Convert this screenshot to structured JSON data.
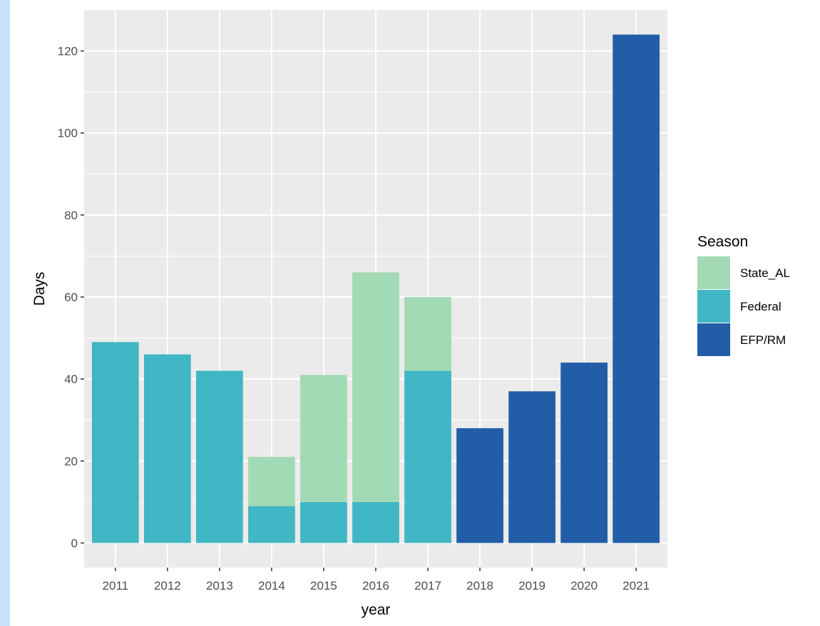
{
  "chart_data": {
    "type": "bar",
    "stacked": true,
    "categories": [
      "2011",
      "2012",
      "2013",
      "2014",
      "2015",
      "2016",
      "2017",
      "2018",
      "2019",
      "2020",
      "2021"
    ],
    "series": [
      {
        "name": "Federal",
        "color": "#41b6c4",
        "values": [
          49,
          46,
          42,
          9,
          10,
          10,
          42,
          0,
          0,
          0,
          0
        ]
      },
      {
        "name": "State_AL",
        "color": "#a1dab4",
        "values": [
          0,
          0,
          0,
          12,
          31,
          56,
          18,
          0,
          0,
          0,
          0
        ]
      },
      {
        "name": "EFP/RM",
        "color": "#225ea8",
        "values": [
          0,
          0,
          0,
          0,
          0,
          0,
          0,
          28,
          37,
          44,
          124
        ]
      }
    ],
    "xlabel": "year",
    "ylabel": "Days",
    "ylim": [
      -6,
      130
    ],
    "yticks": [
      0,
      20,
      40,
      60,
      80,
      100,
      120
    ],
    "grid": true,
    "legend": {
      "title": "Season",
      "placement": "right",
      "entries": [
        {
          "label": "State_AL",
          "color": "#a1dab4"
        },
        {
          "label": "Federal",
          "color": "#41b6c4"
        },
        {
          "label": "EFP/RM",
          "color": "#225ea8"
        }
      ]
    },
    "panel_background": "#ebebeb",
    "grid_color": "#ffffff"
  }
}
